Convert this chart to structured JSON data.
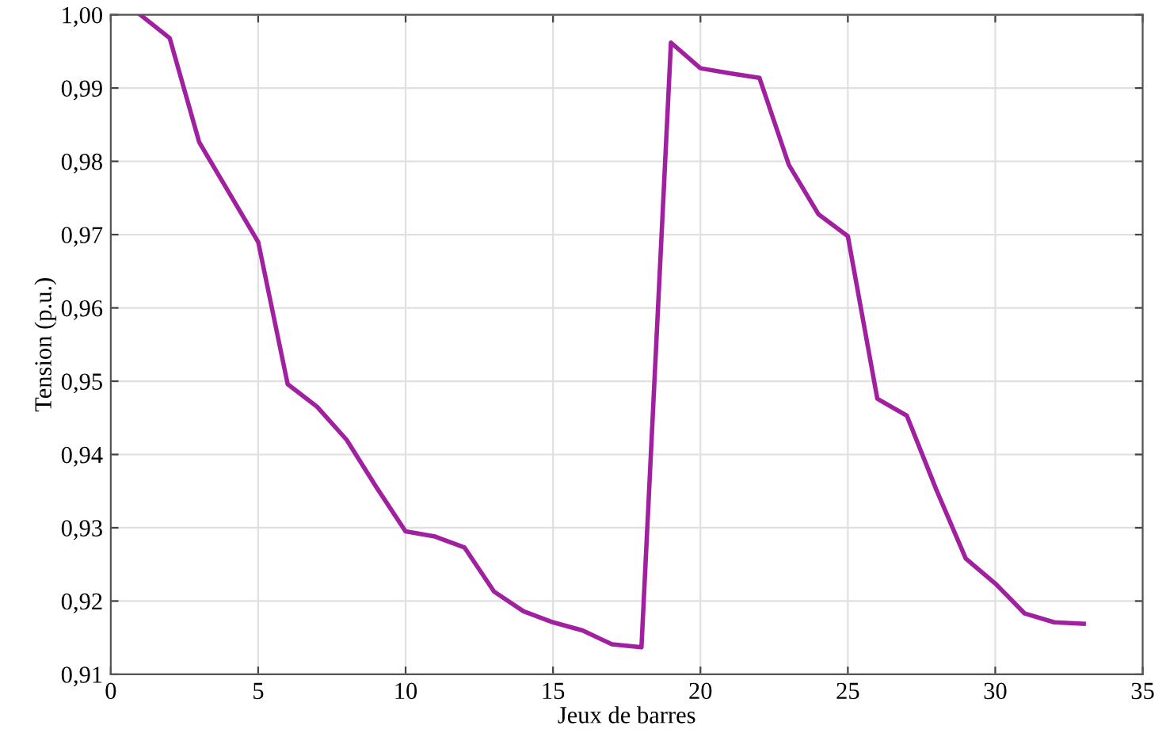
{
  "chart_data": {
    "type": "line",
    "xlabel": "Jeux de barres",
    "ylabel": "Tension (p.u.)",
    "x": [
      1,
      2,
      3,
      4,
      5,
      6,
      7,
      8,
      9,
      10,
      11,
      12,
      13,
      14,
      15,
      16,
      17,
      18,
      19,
      20,
      21,
      22,
      23,
      24,
      25,
      26,
      27,
      28,
      29,
      30,
      31,
      32,
      33
    ],
    "series": [
      {
        "color": "#a020a0",
        "values": [
          1.0,
          0.9968,
          0.9826,
          0.9758,
          0.969,
          0.9496,
          0.9465,
          0.942,
          0.9356,
          0.9295,
          0.9288,
          0.9273,
          0.9213,
          0.9186,
          0.9171,
          0.916,
          0.9141,
          0.9137,
          0.9962,
          0.9927,
          0.992,
          0.9914,
          0.9795,
          0.9728,
          0.9698,
          0.9476,
          0.9453,
          0.9352,
          0.9258,
          0.9224,
          0.9183,
          0.9171,
          0.9169
        ]
      }
    ],
    "xlim": [
      0,
      35
    ],
    "xticks": [
      0,
      5,
      10,
      15,
      20,
      25,
      30,
      35
    ],
    "ylim": [
      0.91,
      1.0
    ],
    "yticks": [
      {
        "value": 0.91,
        "label": "0,91"
      },
      {
        "value": 0.92,
        "label": "0,92"
      },
      {
        "value": 0.93,
        "label": "0,93"
      },
      {
        "value": 0.94,
        "label": "0,94"
      },
      {
        "value": 0.95,
        "label": "0,95"
      },
      {
        "value": 0.96,
        "label": "0,96"
      },
      {
        "value": 0.97,
        "label": "0,97"
      },
      {
        "value": 0.98,
        "label": "0,98"
      },
      {
        "value": 0.99,
        "label": "0,99"
      },
      {
        "value": 1.0,
        "label": "1,00"
      }
    ],
    "grid": true,
    "line_style": "solid"
  }
}
